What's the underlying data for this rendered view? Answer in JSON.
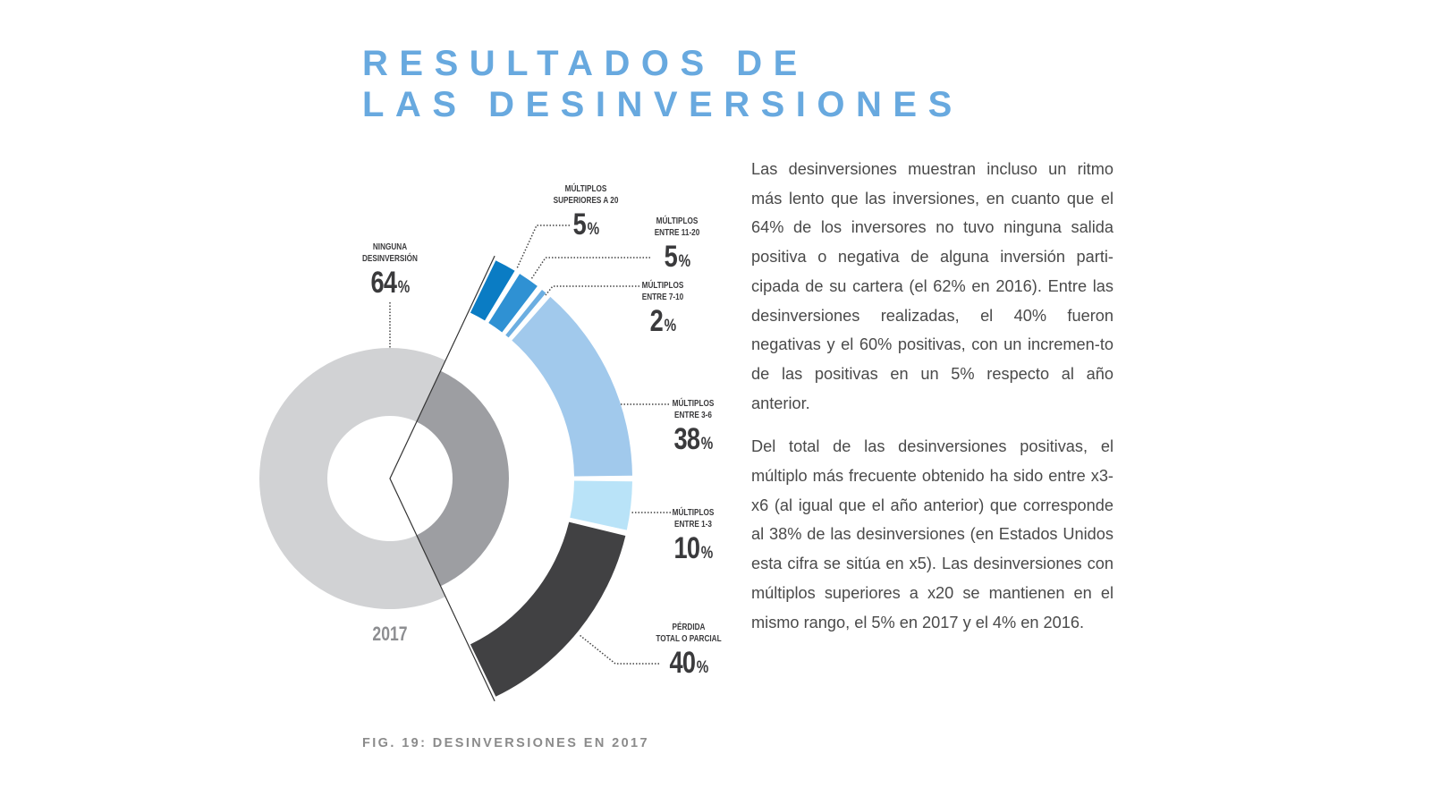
{
  "title": {
    "line1": "RESULTADOS DE",
    "line2": "LAS DESINVERSIONES"
  },
  "paragraphs": [
    "Las desinversiones muestran incluso un ritmo más lento que las inversiones, en cuanto que el 64% de los inversores no tuvo ninguna salida positiva o negativa de alguna inversión parti-cipada de su cartera (el 62% en 2016). Entre las desinversiones realizadas, el 40% fueron negativas y el 60% positivas, con un incremen-to de las positivas en un 5% respecto al año anterior.",
    "Del total de las desinversiones positivas, el múltiplo más frecuente obtenido ha sido entre x3-x6 (al igual que el año anterior) que corresponde al 38% de las desinversiones (en Estados Unidos esta cifra se sitúa en x5). Las desinversiones con múltiplos superiores a x20 se mantienen en el mismo rango, el 5% en 2017 y el 4% en 2016."
  ],
  "caption": "FIG. 19:  DESINVERSIONES EN 2017",
  "chart_data": {
    "type": "pie",
    "subtype": "donut-with-exploded-breakdown",
    "year_label": "2017",
    "percent_sign": "%",
    "main": [
      {
        "label": "NINGUNA DESINVERSIÓN",
        "value": 64,
        "color": "#d1d2d4"
      },
      {
        "label": "",
        "value": 36,
        "color": "#9d9ea2"
      }
    ],
    "breakdown": [
      {
        "label_line1": "MÚLTIPLOS",
        "label_line2": "SUPERIORES A 20",
        "value": 5,
        "color": "#0a7cc4"
      },
      {
        "label_line1": "MÚLTIPLOS",
        "label_line2": "ENTRE 11-20",
        "value": 5,
        "color": "#2f91d3"
      },
      {
        "label_line1": "MÚLTIPLOS",
        "label_line2": "ENTRE 7-10",
        "value": 2,
        "color": "#6caee1"
      },
      {
        "label_line1": "MÚLTIPLOS",
        "label_line2": "ENTRE 3-6",
        "value": 38,
        "color": "#a1c9ec"
      },
      {
        "label_line1": "MÚLTIPLOS",
        "label_line2": "ENTRE 1-3",
        "value": 10,
        "color": "#b9e3f8"
      },
      {
        "label_line1": "PÉRDIDA",
        "label_line2": "TOTAL O PARCIAL",
        "value": 40,
        "color": "#414143"
      }
    ],
    "main_label": {
      "line1": "NINGUNA",
      "line2": "DESINVERSIÓN",
      "value": 64
    }
  }
}
